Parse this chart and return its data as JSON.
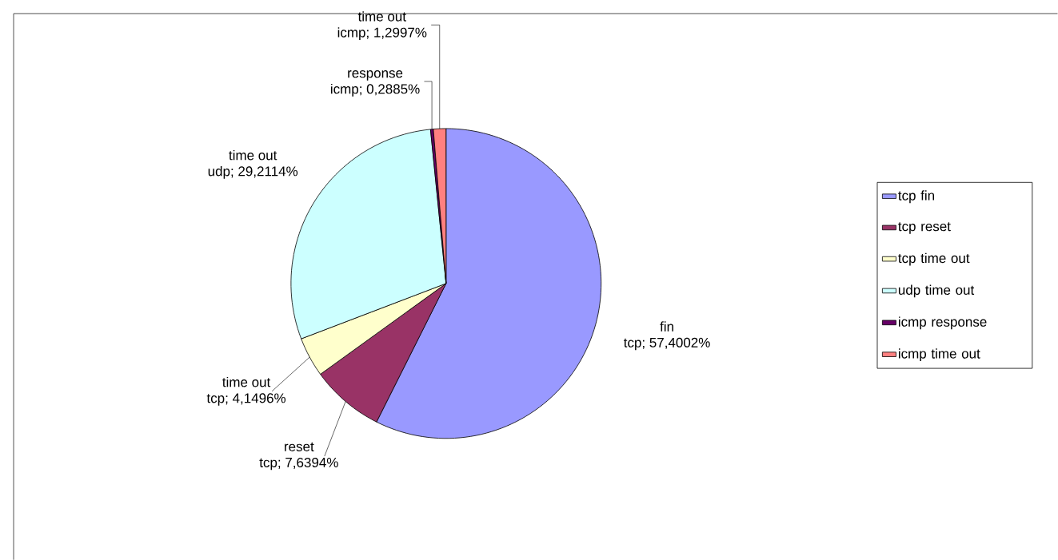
{
  "chart_data": {
    "type": "pie",
    "categories": [
      "tcp fin",
      "tcp reset",
      "tcp time out",
      "udp time out",
      "icmp response",
      "icmp time out"
    ],
    "values": [
      57.4002,
      7.6394,
      4.1496,
      29.2114,
      0.2885,
      1.2997
    ],
    "colors": [
      "#9999ff",
      "#993366",
      "#ffffcc",
      "#ccffff",
      "#660066",
      "#ff8080"
    ],
    "value_labels": [
      [
        "fin",
        "tcp; 57,4002%"
      ],
      [
        "reset",
        "tcp; 7,6394%"
      ],
      [
        "time out",
        "tcp; 4,1496%"
      ],
      [
        "time out",
        "udp; 29,2114%"
      ],
      [
        "response",
        "icmp; 0,2885%"
      ],
      [
        "time out",
        "icmp; 1,2997%"
      ]
    ],
    "legend": "right"
  }
}
